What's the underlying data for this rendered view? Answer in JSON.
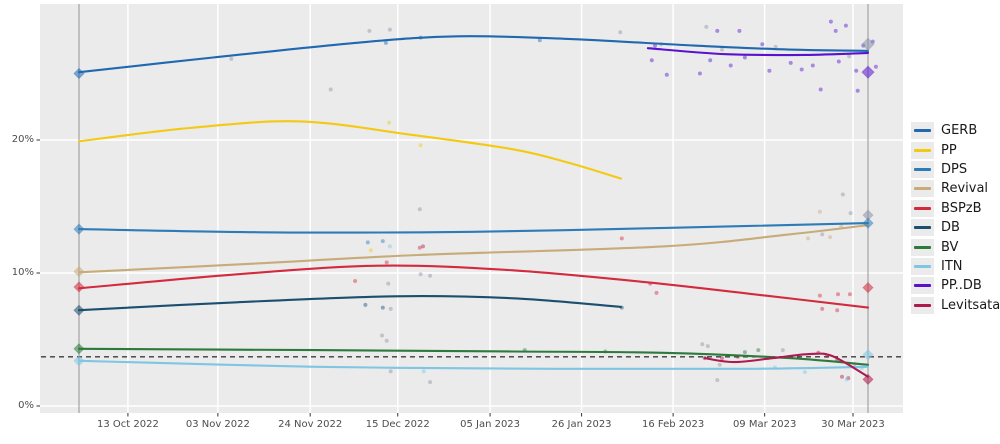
{
  "chart_data": {
    "type": "line",
    "subtype": "poll-trend-with-scatter",
    "title": "",
    "xlabel": "",
    "ylabel": "",
    "grid": true,
    "legend_position": "right",
    "y_axis": {
      "range_pct": [
        0,
        29
      ],
      "ticks": [
        {
          "v": 0,
          "label": "0%"
        },
        {
          "v": 10,
          "label": "10%"
        },
        {
          "v": 20,
          "label": "20%"
        }
      ]
    },
    "x_axis": {
      "ticks": [
        {
          "t": 0.062,
          "label": "13 Oct 2022"
        },
        {
          "t": 0.176,
          "label": "03 Nov 2022"
        },
        {
          "t": 0.293,
          "label": "24 Nov 2022"
        },
        {
          "t": 0.404,
          "label": "15 Dec 2022"
        },
        {
          "t": 0.521,
          "label": "05 Jan 2023"
        },
        {
          "t": 0.637,
          "label": "26 Jan 2023"
        },
        {
          "t": 0.753,
          "label": "16 Feb 2023"
        },
        {
          "t": 0.869,
          "label": "09 Mar 2023"
        },
        {
          "t": 0.981,
          "label": "30 Mar 2023"
        }
      ]
    },
    "election_lines": [
      {
        "t": 0
      },
      {
        "t": 1
      }
    ],
    "threshold_line": {
      "v": 3.7,
      "style": "dashed",
      "color": "#3c3c3c"
    },
    "palette": {
      "gerb": "#2068b0",
      "pp": "#f3c912",
      "dps": "#2d7cb8",
      "revival": "#c7ab79",
      "bsp": "#d42a3d",
      "db": "#1c4e70",
      "bv": "#2c7a3c",
      "itn": "#7ec6e2",
      "ppdb": "#5812d0",
      "lev": "#ad1a4d",
      "gray": "#8b93a8"
    },
    "series": [
      {
        "name": "GERB",
        "key": "gerb",
        "points": [
          [
            0,
            25.1
          ],
          [
            0.17,
            26.2
          ],
          [
            0.35,
            27.3
          ],
          [
            0.48,
            27.8
          ],
          [
            0.62,
            27.6
          ],
          [
            0.78,
            27.1
          ],
          [
            0.9,
            26.8
          ],
          [
            1,
            26.7
          ]
        ]
      },
      {
        "name": "PP",
        "key": "pp",
        "points": [
          [
            0,
            19.9
          ],
          [
            0.14,
            20.9
          ],
          [
            0.28,
            21.4
          ],
          [
            0.42,
            20.4
          ],
          [
            0.55,
            19.3
          ],
          [
            0.62,
            18.3
          ],
          [
            0.687,
            17.1
          ]
        ]
      },
      {
        "name": "DPS",
        "key": "dps",
        "points": [
          [
            0,
            13.3
          ],
          [
            0.25,
            13.05
          ],
          [
            0.5,
            13.1
          ],
          [
            0.75,
            13.4
          ],
          [
            1,
            13.75
          ]
        ]
      },
      {
        "name": "Revival",
        "key": "revival",
        "points": [
          [
            0,
            10.05
          ],
          [
            0.22,
            10.7
          ],
          [
            0.43,
            11.35
          ],
          [
            0.74,
            12.0
          ],
          [
            0.9,
            12.9
          ],
          [
            1,
            13.6
          ]
        ]
      },
      {
        "name": "BSPzB",
        "key": "bsp",
        "points": [
          [
            0,
            8.85
          ],
          [
            0.2,
            9.9
          ],
          [
            0.38,
            10.55
          ],
          [
            0.55,
            10.2
          ],
          [
            0.72,
            9.3
          ],
          [
            0.87,
            8.3
          ],
          [
            1,
            7.4
          ]
        ]
      },
      {
        "name": "DB",
        "key": "db",
        "points": [
          [
            0,
            7.2
          ],
          [
            0.2,
            7.8
          ],
          [
            0.4,
            8.25
          ],
          [
            0.55,
            8.1
          ],
          [
            0.687,
            7.45
          ]
        ]
      },
      {
        "name": "BV",
        "key": "bv",
        "points": [
          [
            0,
            4.3
          ],
          [
            0.3,
            4.2
          ],
          [
            0.55,
            4.1
          ],
          [
            0.74,
            4.0
          ],
          [
            0.9,
            3.6
          ],
          [
            1,
            3.1
          ]
        ]
      },
      {
        "name": "ITN",
        "key": "itn",
        "points": [
          [
            0,
            3.4
          ],
          [
            0.3,
            2.95
          ],
          [
            0.6,
            2.8
          ],
          [
            0.85,
            2.8
          ],
          [
            1,
            2.95
          ]
        ]
      },
      {
        "name": "PP..DB",
        "key": "ppdb",
        "points": [
          [
            0.721,
            26.9
          ],
          [
            0.82,
            26.45
          ],
          [
            0.92,
            26.4
          ],
          [
            1,
            26.55
          ]
        ]
      },
      {
        "name": "Levitsata",
        "key": "lev",
        "points": [
          [
            0.793,
            3.6
          ],
          [
            0.83,
            3.3
          ],
          [
            0.88,
            3.6
          ],
          [
            0.925,
            3.9
          ],
          [
            0.955,
            3.75
          ],
          [
            1,
            2.2
          ]
        ]
      }
    ],
    "election_markers": [
      {
        "party": "GERB",
        "key": "gerb",
        "t": 0,
        "v": 25.0,
        "size": 7
      },
      {
        "party": "DPS",
        "key": "dps",
        "t": 0,
        "v": 13.3,
        "size": 7
      },
      {
        "party": "Revival",
        "key": "revival",
        "t": 0,
        "v": 10.1,
        "size": 7
      },
      {
        "party": "BSPzB",
        "key": "bsp",
        "t": 0,
        "v": 8.95,
        "size": 7
      },
      {
        "party": "DB",
        "key": "db",
        "t": 0,
        "v": 7.2,
        "size": 7
      },
      {
        "party": "BV",
        "key": "bv",
        "t": 0,
        "v": 4.3,
        "size": 7
      },
      {
        "party": "ITN",
        "key": "itn",
        "t": 0,
        "v": 3.4,
        "size": 7
      },
      {
        "party": "GERB",
        "key": "gray",
        "t": 1,
        "v": 27.2,
        "size": 9
      },
      {
        "party": "PP..DB",
        "key": "ppdb",
        "t": 1,
        "v": 25.1,
        "size": 9
      },
      {
        "party": "Revival",
        "key": "gray",
        "t": 1,
        "v": 14.35,
        "size": 7
      },
      {
        "party": "DPS",
        "key": "dps",
        "t": 1,
        "v": 13.75,
        "size": 7
      },
      {
        "party": "BSPzB",
        "key": "bsp",
        "t": 1,
        "v": 8.9,
        "size": 7
      },
      {
        "party": "ITN",
        "key": "itn",
        "t": 1,
        "v": 3.85,
        "size": 7
      },
      {
        "party": "Levitsata",
        "key": "lev",
        "t": 1,
        "v": 2.0,
        "size": 7
      }
    ],
    "scatter": [
      [
        0.193,
        26.1,
        "gray"
      ],
      [
        0.368,
        28.2,
        "gray"
      ],
      [
        0.394,
        28.3,
        "gray"
      ],
      [
        0.389,
        27.3,
        "gerb"
      ],
      [
        0.433,
        27.7,
        "gerb"
      ],
      [
        0.584,
        27.5,
        "gerb"
      ],
      [
        0.686,
        28.1,
        "gray"
      ],
      [
        0.319,
        23.8,
        "gray"
      ],
      [
        0.393,
        21.3,
        "pp"
      ],
      [
        0.433,
        19.6,
        "pp"
      ],
      [
        0.37,
        11.7,
        "pp"
      ],
      [
        0.432,
        14.8,
        "gray"
      ],
      [
        0.366,
        12.3,
        "dps"
      ],
      [
        0.385,
        12.4,
        "dps"
      ],
      [
        0.394,
        12.0,
        "itn"
      ],
      [
        0.436,
        12.0,
        "lev"
      ],
      [
        0.432,
        11.9,
        "bsp"
      ],
      [
        0.39,
        10.8,
        "bsp"
      ],
      [
        0.35,
        9.4,
        "bsp"
      ],
      [
        0.392,
        9.2,
        "gray"
      ],
      [
        0.445,
        9.8,
        "gray"
      ],
      [
        0.433,
        9.9,
        "gray"
      ],
      [
        0.363,
        7.6,
        "db"
      ],
      [
        0.385,
        7.4,
        "db"
      ],
      [
        0.395,
        7.3,
        "gray"
      ],
      [
        0.688,
        7.4,
        "db"
      ],
      [
        0.384,
        5.3,
        "gray"
      ],
      [
        0.39,
        4.9,
        "gray"
      ],
      [
        0.565,
        4.2,
        "bv"
      ],
      [
        0.667,
        4.1,
        "bv"
      ],
      [
        0.437,
        2.6,
        "itn"
      ],
      [
        0.445,
        1.8,
        "gray"
      ],
      [
        0.395,
        2.6,
        "gray"
      ],
      [
        0.73,
        27.1,
        "ppdb"
      ],
      [
        0.738,
        27.2,
        "gray"
      ],
      [
        0.726,
        26.0,
        "ppdb"
      ],
      [
        0.745,
        24.9,
        "ppdb"
      ],
      [
        0.787,
        25.0,
        "ppdb"
      ],
      [
        0.795,
        28.5,
        "gray"
      ],
      [
        0.8,
        26.0,
        "ppdb"
      ],
      [
        0.809,
        28.2,
        "ppdb"
      ],
      [
        0.815,
        26.8,
        "gray"
      ],
      [
        0.826,
        25.6,
        "ppdb"
      ],
      [
        0.837,
        28.2,
        "ppdb"
      ],
      [
        0.844,
        26.2,
        "ppdb"
      ],
      [
        0.866,
        27.2,
        "ppdb"
      ],
      [
        0.875,
        25.2,
        "ppdb"
      ],
      [
        0.883,
        27.0,
        "gray"
      ],
      [
        0.902,
        25.8,
        "ppdb"
      ],
      [
        0.916,
        25.3,
        "ppdb"
      ],
      [
        0.93,
        25.6,
        "ppdb"
      ],
      [
        0.94,
        23.8,
        "ppdb"
      ],
      [
        0.953,
        28.9,
        "ppdb"
      ],
      [
        0.959,
        28.2,
        "ppdb"
      ],
      [
        0.963,
        25.9,
        "ppdb"
      ],
      [
        0.972,
        28.6,
        "ppdb"
      ],
      [
        0.976,
        26.3,
        "gray"
      ],
      [
        0.985,
        25.2,
        "ppdb"
      ],
      [
        0.994,
        27.1,
        "ppdb"
      ],
      [
        1.006,
        27.4,
        "ppdb"
      ],
      [
        1.01,
        25.5,
        "ppdb"
      ],
      [
        0.987,
        23.7,
        "ppdb"
      ],
      [
        0.968,
        15.9,
        "gray"
      ],
      [
        0.939,
        14.6,
        "revival"
      ],
      [
        0.924,
        12.6,
        "revival"
      ],
      [
        0.942,
        12.9,
        "gray"
      ],
      [
        0.952,
        12.7,
        "revival"
      ],
      [
        0.966,
        13.5,
        "revival"
      ],
      [
        0.978,
        14.5,
        "gray"
      ],
      [
        0.688,
        12.6,
        "bsp"
      ],
      [
        0.724,
        9.2,
        "bsp"
      ],
      [
        0.732,
        8.5,
        "bsp"
      ],
      [
        0.939,
        8.3,
        "bsp"
      ],
      [
        0.962,
        8.4,
        "bsp"
      ],
      [
        0.977,
        8.4,
        "bsp"
      ],
      [
        0.942,
        7.3,
        "bsp"
      ],
      [
        0.961,
        7.2,
        "bsp"
      ],
      [
        0.79,
        4.65,
        "gray"
      ],
      [
        0.797,
        4.5,
        "gray"
      ],
      [
        0.793,
        3.6,
        "lev"
      ],
      [
        0.815,
        3.6,
        "lev"
      ],
      [
        0.835,
        3.7,
        "lev"
      ],
      [
        0.873,
        3.6,
        "lev"
      ],
      [
        0.812,
        3.1,
        "gray"
      ],
      [
        0.809,
        1.95,
        "gray"
      ],
      [
        0.882,
        2.9,
        "itn"
      ],
      [
        0.892,
        4.2,
        "gray"
      ],
      [
        0.937,
        4.0,
        "lev"
      ],
      [
        0.948,
        3.75,
        "lev"
      ],
      [
        0.961,
        3.45,
        "lev"
      ],
      [
        0.967,
        2.2,
        "lev"
      ],
      [
        0.975,
        2.1,
        "lev"
      ],
      [
        0.92,
        2.55,
        "itn"
      ],
      [
        0.973,
        2.0,
        "itn"
      ],
      [
        0.992,
        2.85,
        "itn"
      ],
      [
        0.983,
        3.15,
        "gray"
      ],
      [
        0.844,
        4.05,
        "bv"
      ],
      [
        0.861,
        4.2,
        "bv"
      ]
    ],
    "legend": {
      "items": [
        {
          "label": "GERB",
          "key": "gerb"
        },
        {
          "label": "PP",
          "key": "pp"
        },
        {
          "label": "DPS",
          "key": "dps"
        },
        {
          "label": "Revival",
          "key": "revival"
        },
        {
          "label": "BSPzB",
          "key": "bsp"
        },
        {
          "label": "DB",
          "key": "db"
        },
        {
          "label": "BV",
          "key": "bv"
        },
        {
          "label": "ITN",
          "key": "itn"
        },
        {
          "label": "PP..DB",
          "key": "ppdb"
        },
        {
          "label": "Levitsata",
          "key": "lev"
        }
      ]
    }
  }
}
